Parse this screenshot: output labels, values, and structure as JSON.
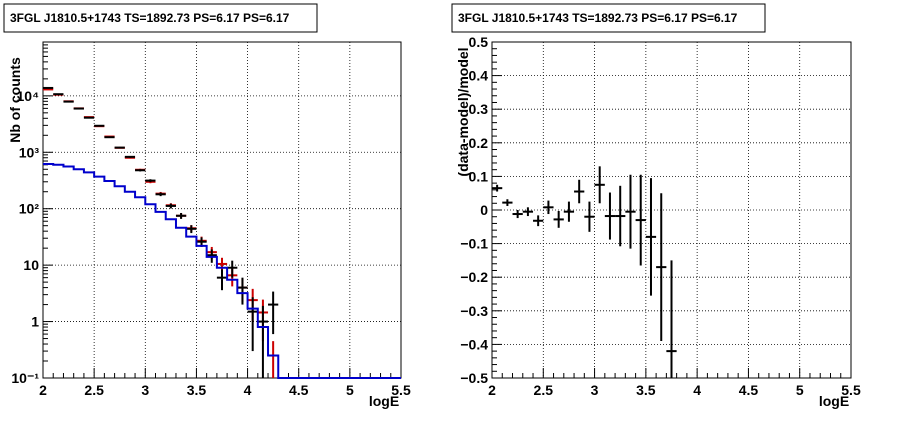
{
  "chart_data": [
    {
      "type": "histogram",
      "title": "3FGL J1810.5+1743 TS=1892.73 PS=6.17 PS=6.17",
      "xlabel": "logE",
      "ylabel": "Nb of counts",
      "xlim": [
        2,
        5.5
      ],
      "ylim": [
        0.1,
        90000
      ],
      "yscale": "log",
      "grid": true,
      "xticks": [
        {
          "v": 2,
          "label": "2"
        },
        {
          "v": 2.5,
          "label": "2.5"
        },
        {
          "v": 3,
          "label": "3"
        },
        {
          "v": 3.5,
          "label": "3.5"
        },
        {
          "v": 4,
          "label": "4"
        },
        {
          "v": 4.5,
          "label": "4.5"
        },
        {
          "v": 5,
          "label": "5"
        },
        {
          "v": 5.5,
          "label": "5.5"
        }
      ],
      "yticks": [
        {
          "v": 0.1,
          "label": "10⁻¹"
        },
        {
          "v": 1,
          "label": "1"
        },
        {
          "v": 10,
          "label": "10"
        },
        {
          "v": 100,
          "label": "10²"
        },
        {
          "v": 1000,
          "label": "10³"
        },
        {
          "v": 10000,
          "label": "10⁴"
        }
      ],
      "series": [
        {
          "color": "#cc0000",
          "style": "points",
          "x": [
            2.05,
            2.15,
            2.25,
            2.35,
            2.45,
            2.55,
            2.65,
            2.75,
            2.85,
            2.95,
            3.05,
            3.15,
            3.25,
            3.35,
            3.45,
            3.55,
            3.65,
            3.75,
            3.85,
            3.95,
            4.05,
            4.15,
            4.25
          ],
          "y": [
            13000,
            10500,
            8000,
            6000,
            4200,
            2900,
            1900,
            1200,
            800,
            490,
            300,
            185,
            115,
            75,
            45,
            27,
            17,
            10.5,
            6.6,
            4.0,
            2.4,
            1.45,
            0.25
          ],
          "yerr": [
            100,
            90,
            80,
            70,
            60,
            50,
            40,
            30,
            25,
            20,
            17,
            13,
            10,
            8,
            6,
            5,
            4,
            3,
            2.4,
            1.8,
            1.4,
            1.0,
            0.2
          ]
        },
        {
          "color": "#000000",
          "style": "points",
          "x": [
            2.05,
            2.15,
            2.25,
            2.35,
            2.45,
            2.55,
            2.65,
            2.75,
            2.85,
            2.95,
            3.05,
            3.15,
            3.25,
            3.35,
            3.45,
            3.55,
            3.65,
            3.75,
            3.85,
            3.95,
            4.05,
            4.15,
            4.25
          ],
          "y": [
            13800,
            10700,
            7900,
            5950,
            4100,
            2950,
            1850,
            1210,
            830,
            480,
            315,
            180,
            112,
            75,
            44,
            26,
            15,
            6,
            9,
            4,
            1.5,
            1,
            2
          ],
          "yerr": [
            120,
            100,
            90,
            77,
            64,
            54,
            43,
            35,
            29,
            22,
            18,
            13,
            11,
            9,
            7,
            5,
            4,
            2.4,
            3,
            2,
            1.2,
            0.9,
            1.4
          ]
        },
        {
          "color": "#0000cc",
          "style": "step",
          "edges": [
            2,
            2.1,
            2.2,
            2.3,
            2.4,
            2.5,
            2.6,
            2.7,
            2.8,
            2.9,
            3.0,
            3.1,
            3.2,
            3.3,
            3.4,
            3.5,
            3.6,
            3.7,
            3.8,
            3.9,
            4.0,
            4.1,
            4.2,
            4.3,
            5.5
          ],
          "values": [
            620,
            600,
            560,
            500,
            440,
            370,
            310,
            250,
            200,
            160,
            120,
            88,
            65,
            46,
            32,
            22,
            14,
            9,
            5.5,
            3.2,
            1.7,
            0.8,
            0.25,
            0.1
          ]
        }
      ]
    },
    {
      "type": "scatter",
      "title": "3FGL J1810.5+1743 TS=1892.73 PS=6.17 PS=6.17",
      "xlabel": "logE",
      "ylabel": "(data-model)/model",
      "xlim": [
        2,
        5.5
      ],
      "ylim": [
        -0.5,
        0.5
      ],
      "grid": true,
      "xticks": [
        {
          "v": 2,
          "label": "2"
        },
        {
          "v": 2.5,
          "label": "2.5"
        },
        {
          "v": 3,
          "label": "3"
        },
        {
          "v": 3.5,
          "label": "3.5"
        },
        {
          "v": 4,
          "label": "4"
        },
        {
          "v": 4.5,
          "label": "4.5"
        },
        {
          "v": 5,
          "label": "5"
        },
        {
          "v": 5.5,
          "label": "5.5"
        }
      ],
      "yticks": [
        {
          "v": -0.5,
          "label": "−0.5"
        },
        {
          "v": -0.4,
          "label": "−0.4"
        },
        {
          "v": -0.3,
          "label": "−0.3"
        },
        {
          "v": -0.2,
          "label": "−0.2"
        },
        {
          "v": -0.1,
          "label": "−0.1"
        },
        {
          "v": 0,
          "label": "0"
        },
        {
          "v": 0.1,
          "label": "0.1"
        },
        {
          "v": 0.2,
          "label": "0.2"
        },
        {
          "v": 0.3,
          "label": "0.3"
        },
        {
          "v": 0.4,
          "label": "0.4"
        },
        {
          "v": 0.5,
          "label": "0.5"
        }
      ],
      "series": [
        {
          "color": "#000000",
          "style": "points",
          "x": [
            2.05,
            2.15,
            2.25,
            2.35,
            2.45,
            2.55,
            2.65,
            2.75,
            2.85,
            2.95,
            3.05,
            3.15,
            3.25,
            3.35,
            3.45,
            3.55,
            3.65,
            3.75
          ],
          "y": [
            0.065,
            0.022,
            -0.012,
            -0.005,
            -0.032,
            0.008,
            -0.028,
            -0.005,
            0.055,
            -0.02,
            0.075,
            -0.018,
            -0.018,
            -0.005,
            -0.03,
            -0.08,
            -0.17,
            -0.42
          ],
          "yerr": [
            0.01,
            0.01,
            0.012,
            0.013,
            0.016,
            0.02,
            0.025,
            0.03,
            0.035,
            0.045,
            0.055,
            0.07,
            0.09,
            0.11,
            0.135,
            0.175,
            0.22,
            0.27
          ]
        }
      ]
    }
  ]
}
